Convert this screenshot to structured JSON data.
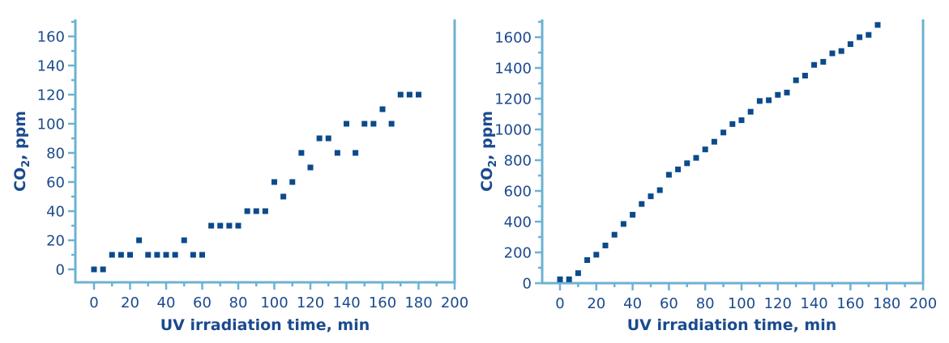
{
  "chart_data": [
    {
      "type": "scatter",
      "title": "",
      "xlabel": "UV irradiation time, min",
      "ylabel": "CO2, ppm",
      "ylabel_main": "CO",
      "ylabel_sub": "2",
      "ylabel_rest": ", ppm",
      "xlim": [
        -10,
        200
      ],
      "ylim": [
        -8,
        168
      ],
      "xticks": [
        0,
        20,
        40,
        60,
        80,
        100,
        120,
        140,
        160,
        180,
        200
      ],
      "yticks": [
        0,
        20,
        40,
        60,
        80,
        100,
        120,
        140,
        160
      ],
      "grid": false,
      "legend": null,
      "color": "#0b4a8b",
      "x": [
        0,
        5,
        10,
        15,
        20,
        25,
        30,
        35,
        40,
        45,
        50,
        55,
        60,
        65,
        70,
        75,
        80,
        85,
        90,
        95,
        100,
        105,
        110,
        115,
        120,
        125,
        130,
        135,
        140,
        145,
        150,
        155,
        160,
        165,
        170,
        175,
        180
      ],
      "y": [
        0,
        0,
        10,
        10,
        10,
        20,
        10,
        10,
        10,
        10,
        20,
        10,
        10,
        30,
        30,
        30,
        30,
        40,
        40,
        40,
        60,
        50,
        60,
        80,
        70,
        90,
        90,
        80,
        100,
        80,
        100,
        100,
        110,
        100,
        120,
        120,
        120
      ]
    },
    {
      "type": "scatter",
      "title": "",
      "xlabel": "UV irradiation time, min",
      "ylabel": "CO2, ppm",
      "ylabel_main": "CO",
      "ylabel_sub": "2",
      "ylabel_rest": ", ppm",
      "xlim": [
        -10,
        200
      ],
      "ylim": [
        0,
        1720
      ],
      "xticks": [
        0,
        20,
        40,
        60,
        80,
        100,
        120,
        140,
        160,
        180,
        200
      ],
      "yticks": [
        0,
        200,
        400,
        600,
        800,
        1000,
        1200,
        1400,
        1600
      ],
      "grid": false,
      "legend": null,
      "color": "#0b4a8b",
      "x": [
        0,
        5,
        10,
        15,
        20,
        25,
        30,
        35,
        40,
        45,
        50,
        55,
        60,
        65,
        70,
        75,
        80,
        85,
        90,
        95,
        100,
        105,
        110,
        115,
        120,
        125,
        130,
        135,
        140,
        145,
        150,
        155,
        160,
        165,
        170,
        175
      ],
      "y": [
        25,
        25,
        65,
        150,
        185,
        245,
        315,
        385,
        445,
        515,
        565,
        605,
        705,
        740,
        780,
        815,
        870,
        920,
        980,
        1035,
        1060,
        1115,
        1185,
        1190,
        1225,
        1240,
        1320,
        1350,
        1420,
        1440,
        1495,
        1510,
        1555,
        1600,
        1615,
        1680
      ]
    }
  ],
  "panels": {
    "left": {
      "xlabel": "UV irradiation time, min",
      "ylabel_main": "CO",
      "ylabel_sub": "2",
      "ylabel_rest": ", ppm"
    },
    "right": {
      "xlabel": "UV irradiation time, min",
      "ylabel_main": "CO",
      "ylabel_sub": "2",
      "ylabel_rest": ", ppm"
    }
  },
  "colors": {
    "marker": "#0b4a8b",
    "axis": "#6cb2d2",
    "text": "#1b4a8e"
  }
}
